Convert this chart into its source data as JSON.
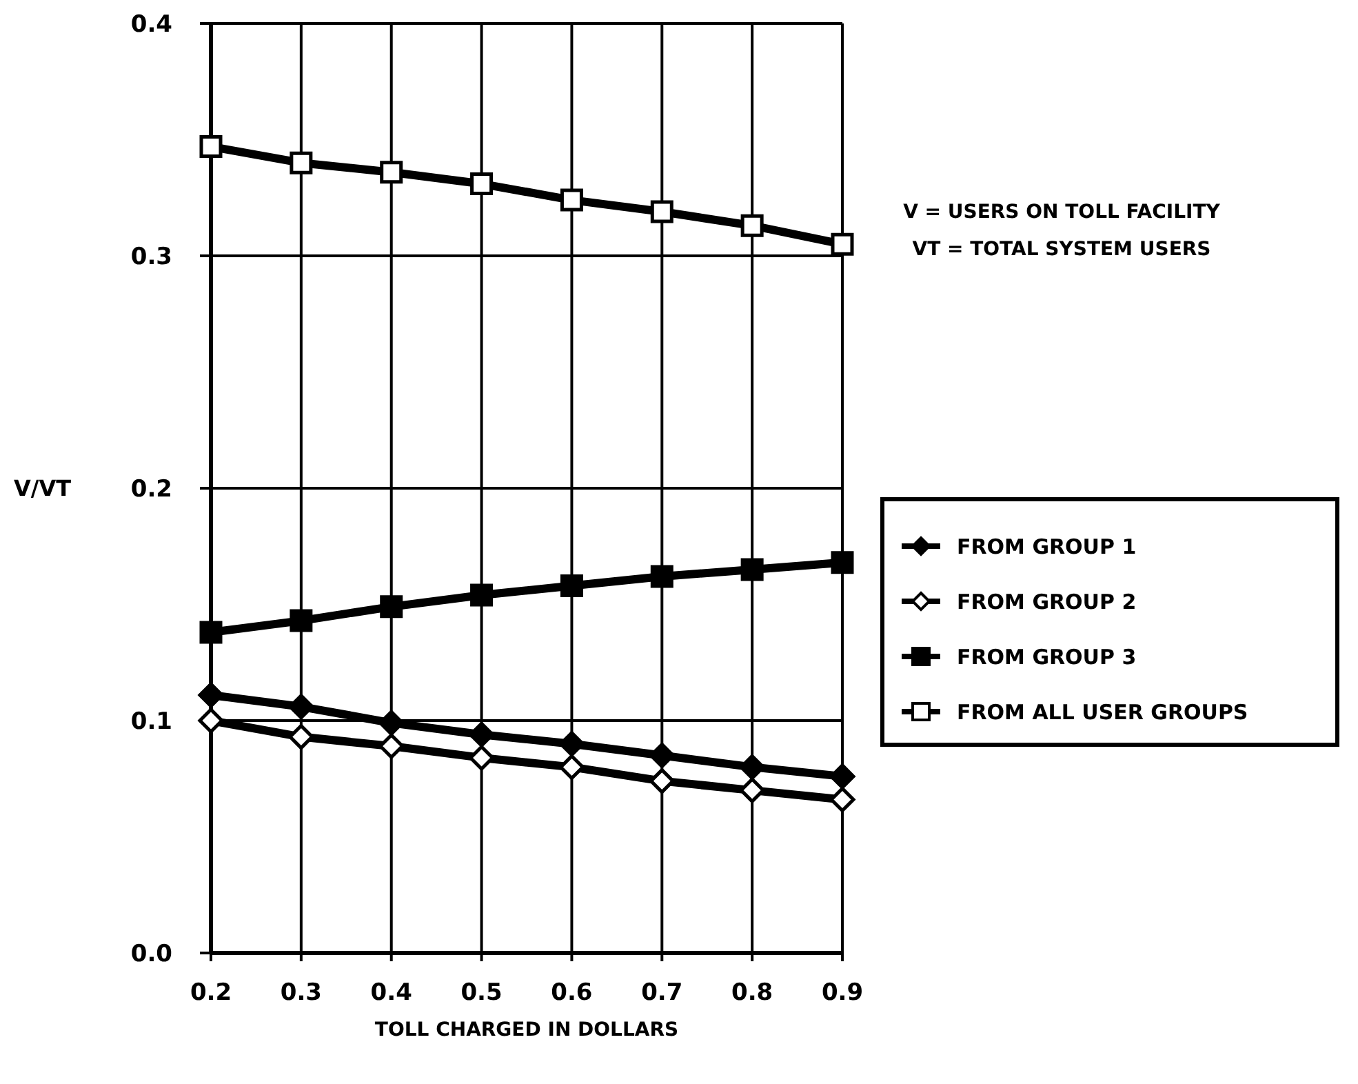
{
  "chart_data": {
    "type": "line",
    "xlabel": "TOLL CHARGED IN DOLLARS",
    "ylabel": "V/VT",
    "x": [
      0.2,
      0.3,
      0.4,
      0.5,
      0.6,
      0.7,
      0.8,
      0.9
    ],
    "xlim": [
      0.2,
      0.9
    ],
    "xticks": [
      0.2,
      0.3,
      0.4,
      0.5,
      0.6,
      0.7,
      0.8,
      0.9
    ],
    "ylim": [
      0,
      0.4
    ],
    "yticks": [
      {
        "value": 0,
        "label": "0.0"
      },
      0.1,
      0.2,
      0.3,
      0.4
    ],
    "grid": true,
    "legend": "right",
    "line_style": "solid",
    "annotations": [
      "V = USERS ON TOLL FACILITY",
      "VT = TOTAL SYSTEM USERS"
    ],
    "series": [
      {
        "name": "FROM GROUP 1",
        "color": "#000000",
        "marker": "diamond",
        "values": [
          0.111,
          0.106,
          0.099,
          0.094,
          0.09,
          0.085,
          0.08,
          0.076
        ]
      },
      {
        "name": "FROM GROUP 2",
        "color": "#000000",
        "marker": "diamond",
        "values": [
          0.1,
          0.093,
          0.089,
          0.084,
          0.08,
          0.074,
          0.07,
          0.066
        ]
      },
      {
        "name": "FROM GROUP 3",
        "color": "#000000",
        "marker": "square",
        "values": [
          0.138,
          0.143,
          0.149,
          0.154,
          0.158,
          0.162,
          0.165,
          0.168
        ]
      },
      {
        "name": "FROM ALL USER GROUPS",
        "color": "#000000",
        "marker": "square",
        "values": [
          0.347,
          0.34,
          0.336,
          0.331,
          0.324,
          0.319,
          0.313,
          0.305
        ]
      }
    ]
  }
}
